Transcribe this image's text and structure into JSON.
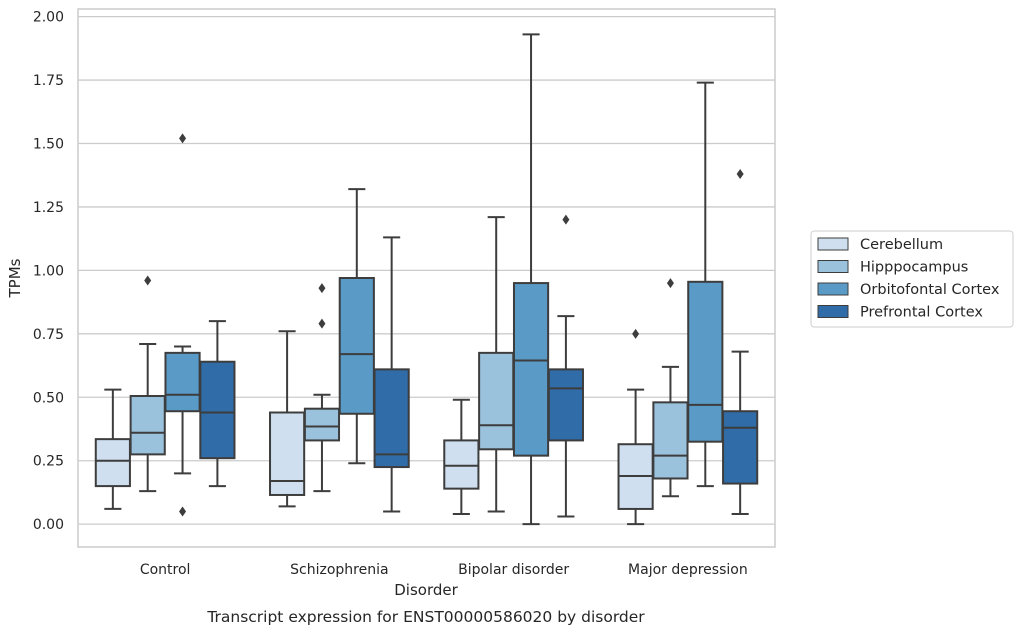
{
  "chart_data": {
    "type": "box",
    "xlabel": "Disorder",
    "ylabel": "TPMs",
    "caption": "Transcript expression for ENST00000586020 by disorder",
    "ylim": [
      -0.09,
      2.03
    ],
    "yticks": [
      "0.00",
      "0.25",
      "0.50",
      "0.75",
      "1.00",
      "1.25",
      "1.50",
      "1.75",
      "2.00"
    ],
    "grid": "horizontal",
    "legend_position": "right",
    "categories": [
      "Control",
      "Schizophrenia",
      "Bipolar disorder",
      "Major depression"
    ],
    "series": [
      {
        "name": "Cerebellum",
        "color": "#d0dff0",
        "boxes": [
          {
            "whislo": 0.06,
            "q1": 0.15,
            "med": 0.25,
            "q3": 0.335,
            "whishi": 0.53,
            "fliers": []
          },
          {
            "whislo": 0.07,
            "q1": 0.115,
            "med": 0.17,
            "q3": 0.44,
            "whishi": 0.76,
            "fliers": []
          },
          {
            "whislo": 0.04,
            "q1": 0.14,
            "med": 0.23,
            "q3": 0.33,
            "whishi": 0.49,
            "fliers": []
          },
          {
            "whislo": 0.0,
            "q1": 0.06,
            "med": 0.19,
            "q3": 0.315,
            "whishi": 0.53,
            "fliers": [
              0.75
            ]
          }
        ]
      },
      {
        "name": "Hipppocampus",
        "color": "#9ac2dd",
        "boxes": [
          {
            "whislo": 0.13,
            "q1": 0.275,
            "med": 0.36,
            "q3": 0.505,
            "whishi": 0.71,
            "fliers": [
              0.96
            ]
          },
          {
            "whislo": 0.13,
            "q1": 0.33,
            "med": 0.385,
            "q3": 0.455,
            "whishi": 0.51,
            "fliers": [
              0.79,
              0.93
            ]
          },
          {
            "whislo": 0.05,
            "q1": 0.295,
            "med": 0.39,
            "q3": 0.675,
            "whishi": 1.21,
            "fliers": []
          },
          {
            "whislo": 0.11,
            "q1": 0.18,
            "med": 0.27,
            "q3": 0.48,
            "whishi": 0.62,
            "fliers": [
              0.95
            ]
          }
        ]
      },
      {
        "name": "Orbitofontal Cortex",
        "color": "#5a9ac6",
        "boxes": [
          {
            "whislo": 0.2,
            "q1": 0.445,
            "med": 0.51,
            "q3": 0.675,
            "whishi": 0.7,
            "fliers": [
              1.52,
              0.05
            ]
          },
          {
            "whislo": 0.24,
            "q1": 0.435,
            "med": 0.67,
            "q3": 0.97,
            "whishi": 1.32,
            "fliers": []
          },
          {
            "whislo": 0.0,
            "q1": 0.27,
            "med": 0.645,
            "q3": 0.95,
            "whishi": 1.93,
            "fliers": []
          },
          {
            "whislo": 0.15,
            "q1": 0.325,
            "med": 0.47,
            "q3": 0.955,
            "whishi": 1.74,
            "fliers": []
          }
        ]
      },
      {
        "name": "Prefrontal Cortex",
        "color": "#2f6ca8",
        "boxes": [
          {
            "whislo": 0.15,
            "q1": 0.26,
            "med": 0.44,
            "q3": 0.64,
            "whishi": 0.8,
            "fliers": []
          },
          {
            "whislo": 0.05,
            "q1": 0.225,
            "med": 0.275,
            "q3": 0.61,
            "whishi": 1.13,
            "fliers": []
          },
          {
            "whislo": 0.03,
            "q1": 0.33,
            "med": 0.535,
            "q3": 0.61,
            "whishi": 0.82,
            "fliers": [
              1.2
            ]
          },
          {
            "whislo": 0.04,
            "q1": 0.16,
            "med": 0.38,
            "q3": 0.445,
            "whishi": 0.68,
            "fliers": [
              1.38
            ]
          }
        ]
      }
    ]
  }
}
